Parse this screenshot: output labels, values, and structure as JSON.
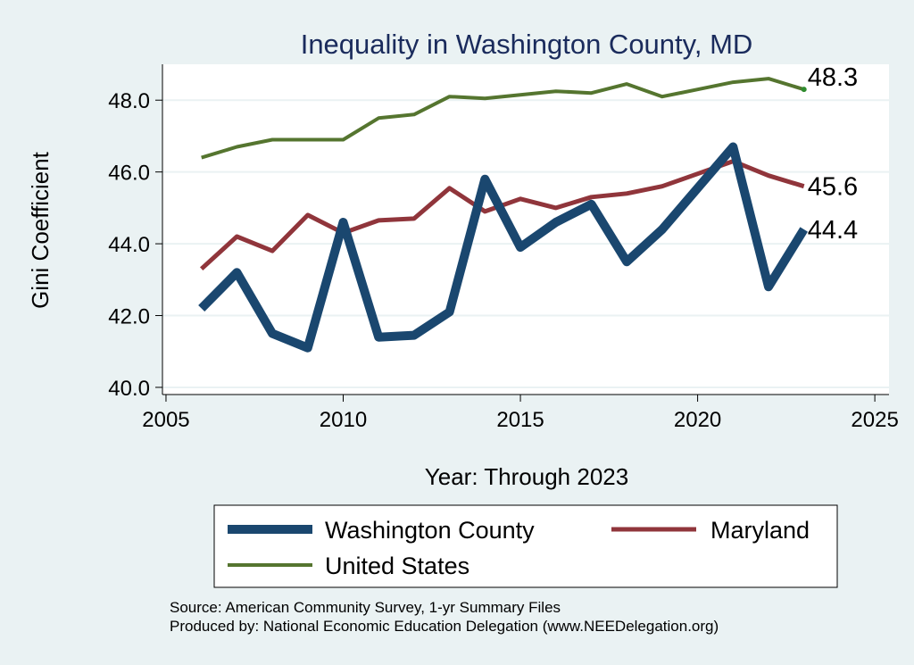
{
  "chart_data": {
    "type": "line",
    "title": "Inequality in Washington County, MD",
    "xlabel": "Year: Through 2023",
    "ylabel": "Gini Coefficient",
    "xlim": [
      2004.9,
      2025.4
    ],
    "ylim": [
      39.8,
      49.0
    ],
    "xticks": [
      2005,
      2010,
      2015,
      2020,
      2025
    ],
    "yticks": [
      40.0,
      42.0,
      44.0,
      46.0,
      48.0
    ],
    "ytick_labels": [
      "40.0",
      "42.0",
      "44.0",
      "46.0",
      "48.0"
    ],
    "grid": true,
    "legend_position": "bottom",
    "x": [
      2006,
      2007,
      2008,
      2009,
      2010,
      2011,
      2012,
      2013,
      2014,
      2015,
      2016,
      2017,
      2018,
      2019,
      2020,
      2021,
      2022,
      2023
    ],
    "series": [
      {
        "name": "Washington County",
        "color": "#1a476f",
        "values": [
          42.2,
          43.2,
          41.5,
          41.1,
          44.6,
          41.4,
          41.45,
          42.1,
          45.8,
          43.9,
          44.6,
          45.1,
          43.5,
          44.4,
          45.55,
          46.7,
          42.8,
          44.4
        ],
        "end_label": "44.4"
      },
      {
        "name": "Maryland",
        "color": "#90353b",
        "values": [
          43.3,
          44.2,
          43.8,
          44.8,
          44.3,
          44.65,
          44.7,
          45.55,
          44.9,
          45.25,
          45.0,
          45.3,
          45.4,
          45.6,
          45.95,
          46.3,
          45.9,
          45.6
        ],
        "end_label": "45.6"
      },
      {
        "name": "United States",
        "color": "#55752f",
        "values": [
          46.4,
          46.7,
          46.9,
          46.9,
          46.9,
          47.5,
          47.6,
          48.1,
          48.05,
          48.15,
          48.25,
          48.2,
          48.45,
          48.1,
          48.3,
          48.5,
          48.6,
          48.3
        ],
        "end_label": "48.3"
      }
    ]
  },
  "notes": {
    "source": "Source: American Community Survey, 1-yr Summary Files",
    "produced_by": "Produced by: National Economic Education Delegation (www.NEEDelegation.org)"
  }
}
